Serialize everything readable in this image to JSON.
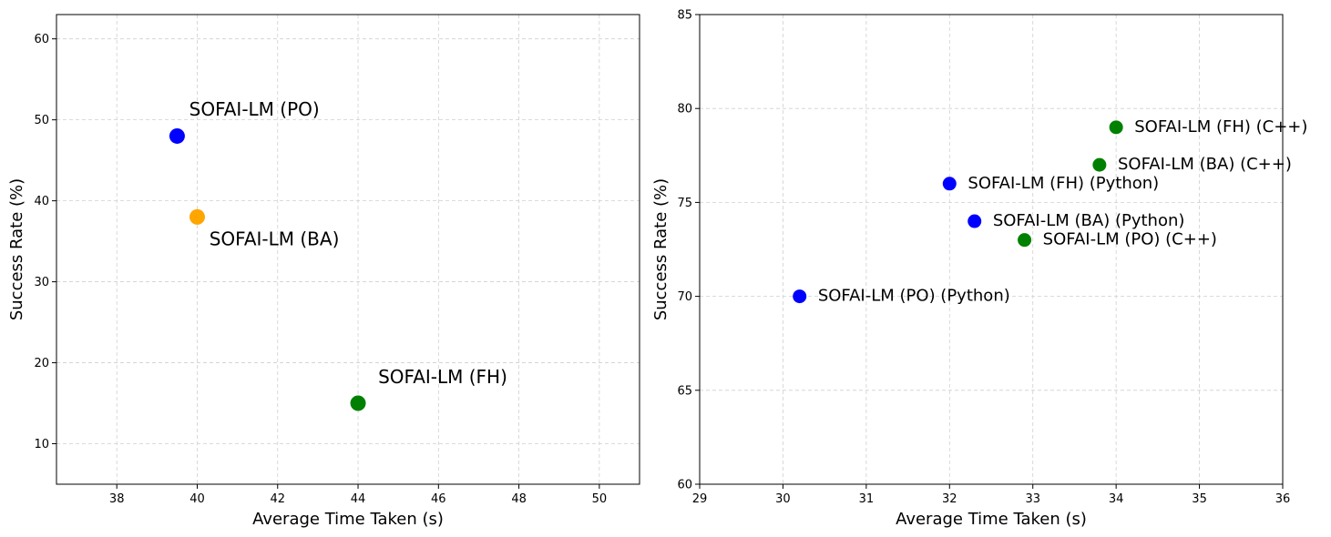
{
  "chart_data": [
    {
      "type": "scatter",
      "title": "",
      "xlabel": "Average Time Taken (s)",
      "ylabel": "Success Rate (%)",
      "xlim": [
        36.5,
        51
      ],
      "ylim": [
        5,
        63
      ],
      "xticks": [
        38,
        40,
        42,
        44,
        46,
        48,
        50
      ],
      "yticks": [
        10,
        20,
        30,
        40,
        50,
        60
      ],
      "grid": true,
      "points": [
        {
          "label": "SOFAI-LM (PO)",
          "x": 39.5,
          "y": 48,
          "color": "#0000ff",
          "label_x": 39.8,
          "label_y": 50.5
        },
        {
          "label": "SOFAI-LM (BA)",
          "x": 40.0,
          "y": 38,
          "color": "#ffa500",
          "label_x": 40.3,
          "label_y": 34.5
        },
        {
          "label": "SOFAI-LM (FH)",
          "x": 44.0,
          "y": 15,
          "color": "#008000",
          "label_x": 44.5,
          "label_y": 17.5
        }
      ]
    },
    {
      "type": "scatter",
      "title": "",
      "xlabel": "Average Time Taken (s)",
      "ylabel": "Success Rate (%)",
      "xlim": [
        29,
        36
      ],
      "ylim": [
        60,
        85
      ],
      "xticks": [
        29,
        30,
        31,
        32,
        33,
        34,
        35,
        36
      ],
      "yticks": [
        60,
        65,
        70,
        75,
        80,
        85
      ],
      "grid": true,
      "points": [
        {
          "label": "SOFAI-LM (PO) (Python)",
          "x": 30.2,
          "y": 70,
          "color": "#0000ff",
          "label_x": 30.42,
          "label_y": 70
        },
        {
          "label": "SOFAI-LM (FH) (Python)",
          "x": 32.0,
          "y": 76,
          "color": "#0000ff",
          "label_x": 32.22,
          "label_y": 76
        },
        {
          "label": "SOFAI-LM (BA) (Python)",
          "x": 32.3,
          "y": 74,
          "color": "#0000ff",
          "label_x": 32.52,
          "label_y": 74
        },
        {
          "label": "SOFAI-LM (PO) (C++)",
          "x": 32.9,
          "y": 73,
          "color": "#008000",
          "label_x": 33.12,
          "label_y": 73
        },
        {
          "label": "SOFAI-LM (BA) (C++)",
          "x": 33.8,
          "y": 77,
          "color": "#008000",
          "label_x": 34.02,
          "label_y": 77
        },
        {
          "label": "SOFAI-LM (FH) (C++)",
          "x": 34.0,
          "y": 79,
          "color": "#008000",
          "label_x": 34.22,
          "label_y": 79
        }
      ]
    }
  ]
}
